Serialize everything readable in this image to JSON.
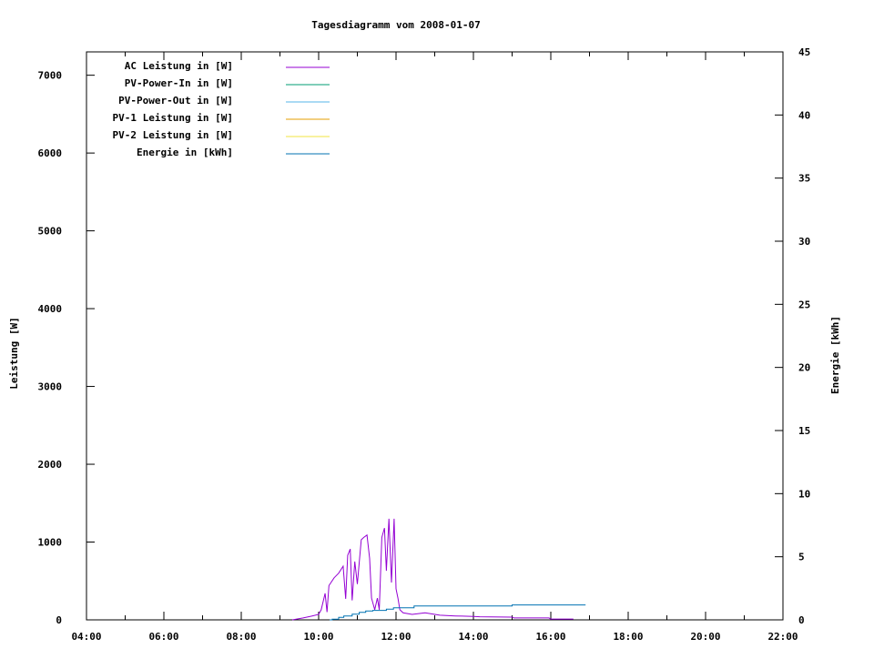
{
  "chart_data": {
    "type": "line",
    "title": "Tagesdiagramm vom 2008-01-07",
    "ylabel": "Leistung [W]",
    "y2label": "Energie [kWh]",
    "xlim": [
      "04:00",
      "22:00"
    ],
    "ylim": [
      0,
      7300
    ],
    "y2lim": [
      0,
      45
    ],
    "xticks": [
      "04:00",
      "06:00",
      "08:00",
      "10:00",
      "12:00",
      "14:00",
      "16:00",
      "18:00",
      "20:00",
      "22:00"
    ],
    "yticks": [
      0,
      1000,
      2000,
      3000,
      4000,
      5000,
      6000,
      7000
    ],
    "y2ticks": [
      0,
      5,
      10,
      15,
      20,
      25,
      30,
      35,
      40,
      45
    ],
    "grid": false,
    "legend_placement": "top-left",
    "series": [
      {
        "name": "AC Leistung in [W]",
        "color": "#9400d3",
        "axis": "y",
        "x": [
          "09:19",
          "09:36",
          "09:50",
          "10:00",
          "10:04",
          "10:10",
          "10:13",
          "10:16",
          "10:24",
          "10:31",
          "10:38",
          "10:42",
          "10:45",
          "10:49",
          "10:52",
          "10:56",
          "11:00",
          "11:06",
          "11:10",
          "11:15",
          "11:19",
          "11:22",
          "11:27",
          "11:31",
          "11:34",
          "11:38",
          "11:42",
          "11:45",
          "11:49",
          "11:53",
          "11:57",
          "12:00",
          "12:03",
          "12:06",
          "12:11",
          "12:25",
          "12:45",
          "13:08",
          "13:32",
          "14:00",
          "14:10",
          "15:00",
          "15:03",
          "15:57",
          "16:00",
          "16:35"
        ],
        "values": [
          0,
          25,
          50,
          70,
          130,
          340,
          100,
          440,
          540,
          600,
          690,
          270,
          830,
          910,
          250,
          750,
          460,
          1030,
          1060,
          1090,
          790,
          280,
          130,
          280,
          130,
          1060,
          1180,
          630,
          1300,
          480,
          1300,
          400,
          280,
          130,
          90,
          70,
          90,
          60,
          50,
          45,
          40,
          35,
          25,
          25,
          10,
          10
        ]
      },
      {
        "name": "PV-Power-In in [W]",
        "color": "#009e73",
        "axis": "y",
        "x": [],
        "values": []
      },
      {
        "name": "PV-Power-Out in [W]",
        "color": "#56b4e9",
        "axis": "y",
        "x": [],
        "values": []
      },
      {
        "name": "PV-1 Leistung in [W]",
        "color": "#e69f00",
        "axis": "y",
        "x": [],
        "values": []
      },
      {
        "name": "PV-2 Leistung in [W]",
        "color": "#f0e442",
        "axis": "y",
        "x": [],
        "values": []
      },
      {
        "name": "Energie in [kWh]",
        "color": "#0072b2",
        "axis": "y2",
        "x": [
          "10:17",
          "10:21",
          "10:31",
          "10:39",
          "10:52",
          "11:03",
          "11:13",
          "11:24",
          "11:45",
          "11:56",
          "12:28",
          "15:00",
          "16:54"
        ],
        "values": [
          0,
          0.05,
          0.2,
          0.3,
          0.45,
          0.6,
          0.7,
          0.75,
          0.85,
          0.95,
          1.1,
          1.18,
          1.18
        ]
      }
    ]
  }
}
